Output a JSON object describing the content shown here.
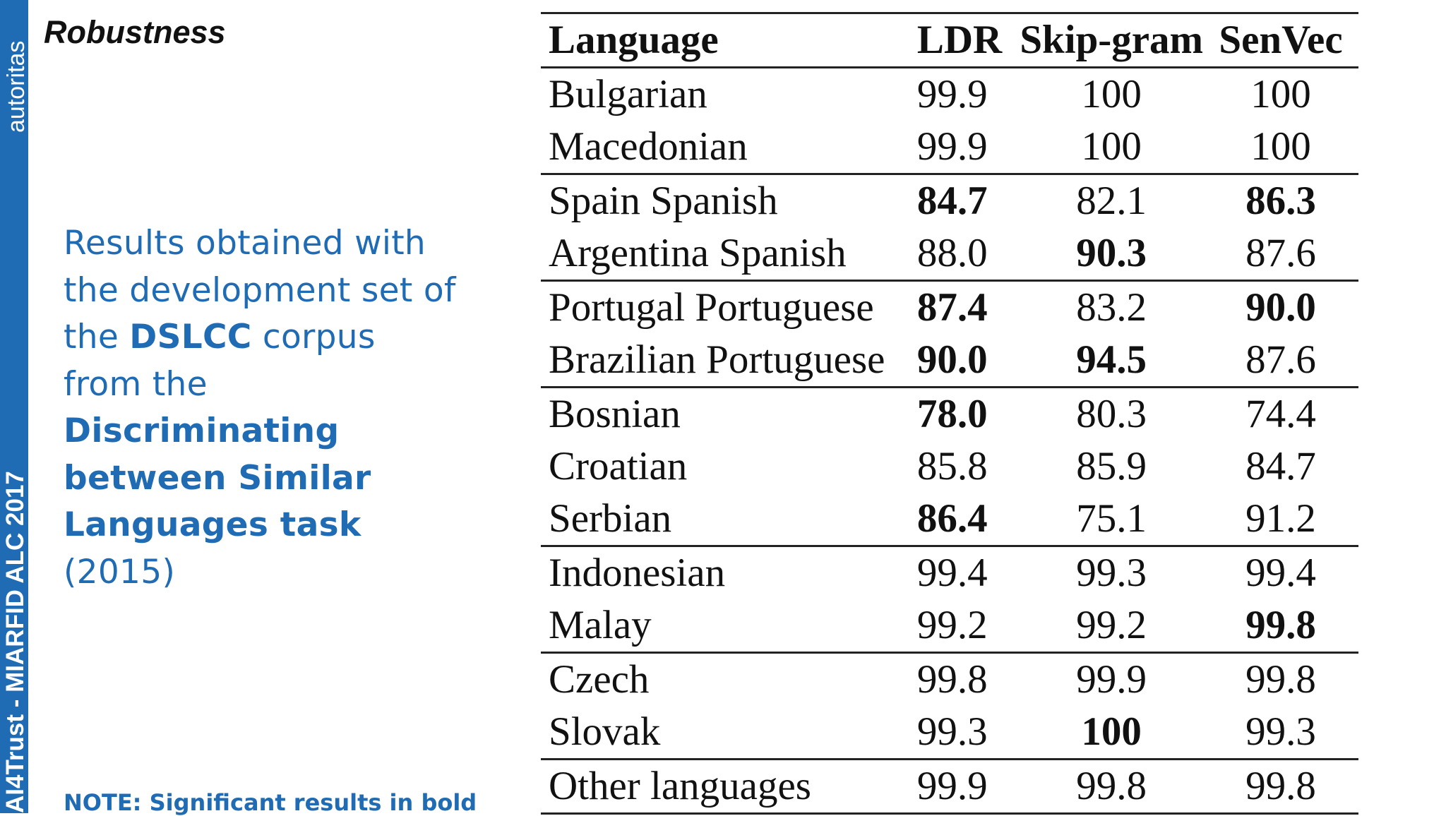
{
  "sidebar": {
    "top_text": "autoritas",
    "bottom_text": "AI4Trust - MIARFID ALC 2017"
  },
  "slide": {
    "title": "Robustness",
    "description": {
      "line1": "Results obtained with",
      "line2": "the development set of",
      "line3_pre": "the ",
      "line3_bold": "DSLCC",
      "line3_post": " corpus",
      "line4": "from the",
      "line5_bold": "Discriminating",
      "line6_bold": "between Similar",
      "line7_bold": "Languages task",
      "line8": "(2015)"
    },
    "note": "NOTE: Significant results in bold"
  },
  "table": {
    "headers": [
      "Language",
      "LDR",
      "Skip-gram",
      "SenVec"
    ],
    "rows": [
      {
        "language": "Bulgarian",
        "ldr": "99.9",
        "skipgram": "100",
        "senvec": "100",
        "bold": [
          false,
          false,
          false
        ],
        "group_start": true
      },
      {
        "language": "Macedonian",
        "ldr": "99.9",
        "skipgram": "100",
        "senvec": "100",
        "bold": [
          false,
          false,
          false
        ],
        "group_start": false
      },
      {
        "language": "Spain Spanish",
        "ldr": "84.7",
        "skipgram": "82.1",
        "senvec": "86.3",
        "bold": [
          true,
          false,
          true
        ],
        "group_start": true
      },
      {
        "language": "Argentina Spanish",
        "ldr": "88.0",
        "skipgram": "90.3",
        "senvec": "87.6",
        "bold": [
          false,
          true,
          false
        ],
        "group_start": false
      },
      {
        "language": "Portugal Portuguese",
        "ldr": "87.4",
        "skipgram": "83.2",
        "senvec": "90.0",
        "bold": [
          true,
          false,
          true
        ],
        "group_start": true
      },
      {
        "language": "Brazilian Portuguese",
        "ldr": "90.0",
        "skipgram": "94.5",
        "senvec": "87.6",
        "bold": [
          true,
          true,
          false
        ],
        "group_start": false
      },
      {
        "language": "Bosnian",
        "ldr": "78.0",
        "skipgram": "80.3",
        "senvec": "74.4",
        "bold": [
          true,
          false,
          false
        ],
        "group_start": true
      },
      {
        "language": "Croatian",
        "ldr": "85.8",
        "skipgram": "85.9",
        "senvec": "84.7",
        "bold": [
          false,
          false,
          false
        ],
        "group_start": false
      },
      {
        "language": "Serbian",
        "ldr": "86.4",
        "skipgram": "75.1",
        "senvec": "91.2",
        "bold": [
          true,
          false,
          false
        ],
        "group_start": false
      },
      {
        "language": "Indonesian",
        "ldr": "99.4",
        "skipgram": "99.3",
        "senvec": "99.4",
        "bold": [
          false,
          false,
          false
        ],
        "group_start": true
      },
      {
        "language": "Malay",
        "ldr": "99.2",
        "skipgram": "99.2",
        "senvec": "99.8",
        "bold": [
          false,
          false,
          true
        ],
        "group_start": false
      },
      {
        "language": "Czech",
        "ldr": "99.8",
        "skipgram": "99.9",
        "senvec": "99.8",
        "bold": [
          false,
          false,
          false
        ],
        "group_start": true
      },
      {
        "language": "Slovak",
        "ldr": "99.3",
        "skipgram": "100",
        "senvec": "99.3",
        "bold": [
          false,
          true,
          false
        ],
        "group_start": false
      },
      {
        "language": "Other languages",
        "ldr": "99.9",
        "skipgram": "99.8",
        "senvec": "99.8",
        "bold": [
          false,
          false,
          false
        ],
        "group_start": true
      }
    ]
  }
}
